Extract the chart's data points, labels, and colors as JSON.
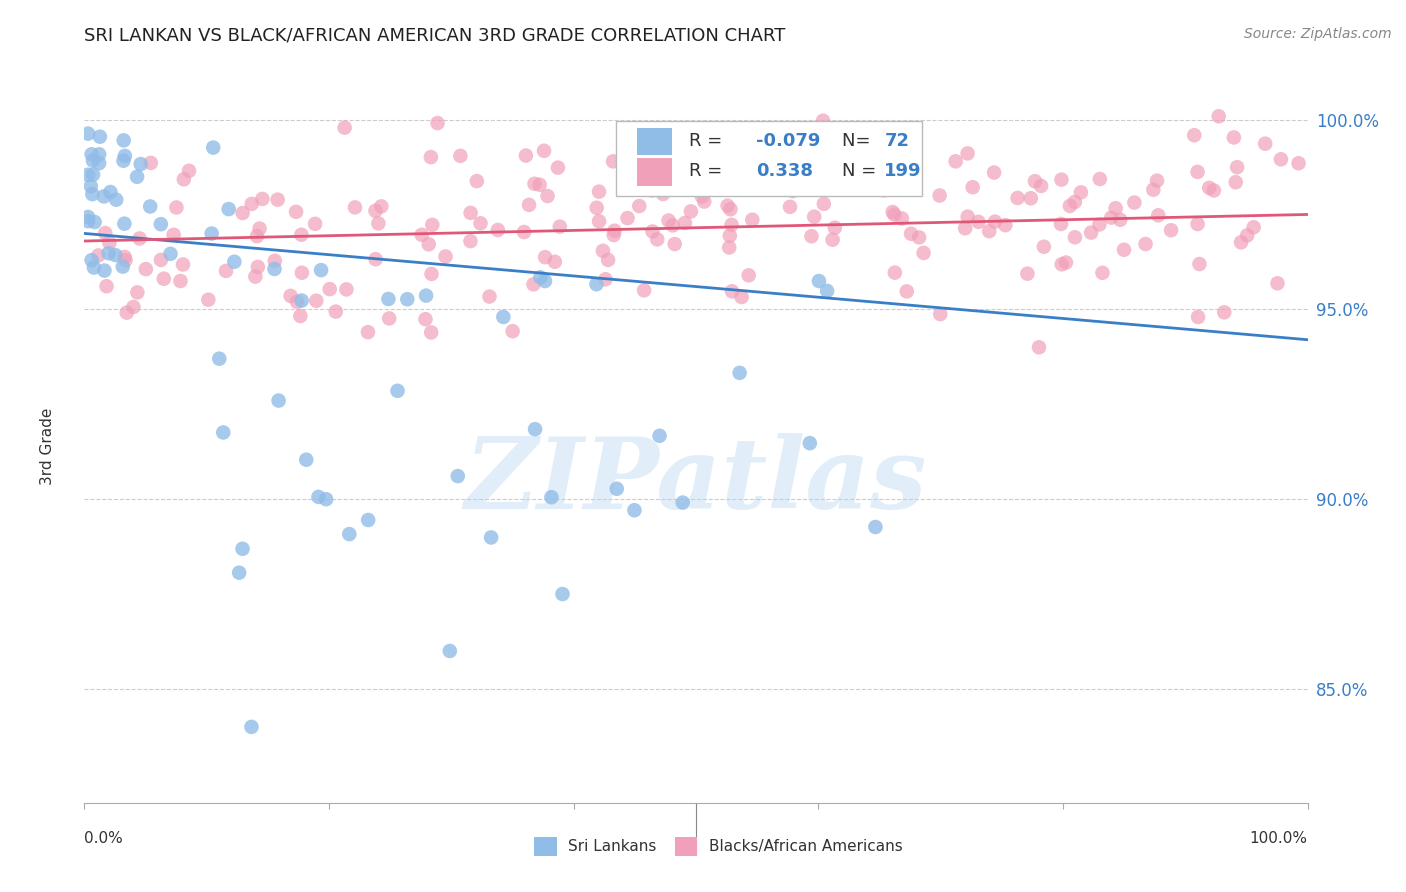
{
  "title": "SRI LANKAN VS BLACK/AFRICAN AMERICAN 3RD GRADE CORRELATION CHART",
  "source": "Source: ZipAtlas.com",
  "ylabel": "3rd Grade",
  "blue_R": "-0.079",
  "blue_N": "72",
  "pink_R": "0.338",
  "pink_N": "199",
  "blue_color": "#90bce8",
  "pink_color": "#f0a0b8",
  "blue_line_color": "#3a7ec8",
  "pink_line_color": "#e05878",
  "legend_blue_label": "Sri Lankans",
  "legend_pink_label": "Blacks/African Americans",
  "watermark_text": "ZIPatlas",
  "xlim": [
    0.0,
    1.0
  ],
  "ylim": [
    0.82,
    1.008
  ],
  "yticks": [
    0.85,
    0.9,
    0.95,
    1.0
  ],
  "ytick_labels": [
    "85.0%",
    "90.0%",
    "95.0%",
    "100.0%"
  ],
  "blue_trend_x": [
    0.0,
    1.0
  ],
  "blue_trend_y": [
    0.97,
    0.942
  ],
  "pink_trend_x": [
    0.0,
    1.0
  ],
  "pink_trend_y": [
    0.968,
    0.975
  ]
}
